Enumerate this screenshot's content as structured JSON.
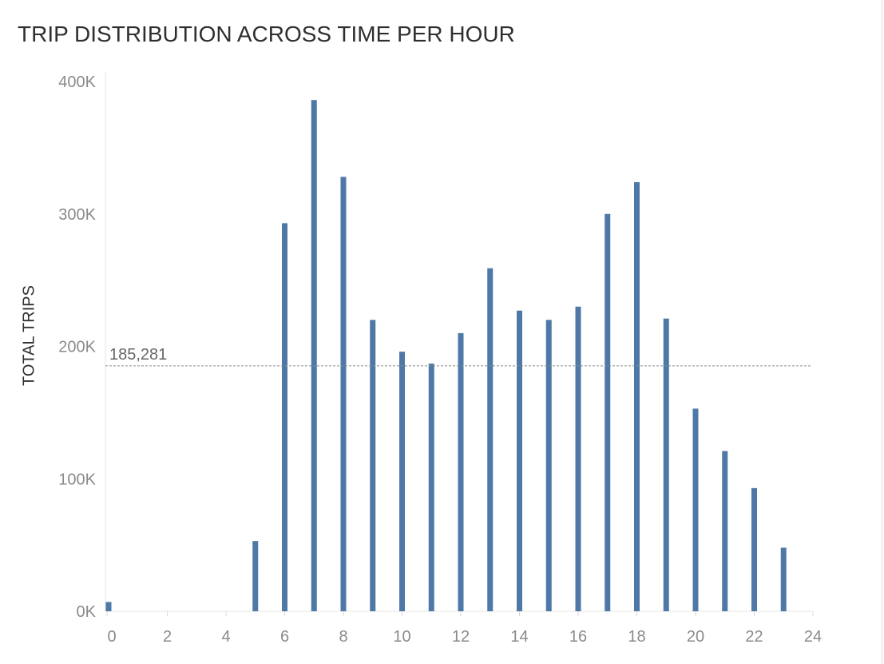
{
  "chart_data": {
    "type": "bar",
    "title": "TRIP DISTRIBUTION ACROSS TIME PER HOUR",
    "ylabel": "TOTAL TRIPS",
    "xlabel": "",
    "x": [
      0,
      1,
      2,
      3,
      4,
      5,
      6,
      7,
      8,
      9,
      10,
      11,
      12,
      13,
      14,
      15,
      16,
      17,
      18,
      19,
      20,
      21,
      22,
      23
    ],
    "values": [
      7000,
      0,
      0,
      0,
      0,
      53000,
      293000,
      386000,
      328000,
      220000,
      196000,
      187000,
      210000,
      259000,
      227000,
      220000,
      230000,
      300000,
      324000,
      221000,
      153000,
      121000,
      93000,
      48000
    ],
    "xticks": [
      "0",
      "2",
      "4",
      "6",
      "8",
      "10",
      "12",
      "14",
      "16",
      "18",
      "20",
      "22",
      "24"
    ],
    "yticks": [
      "0K",
      "100K",
      "200K",
      "300K",
      "400K"
    ],
    "xlim": [
      0,
      24
    ],
    "ylim": [
      0,
      400000
    ],
    "reference_line": {
      "value": 185281,
      "label": "185,281",
      "style": "dashed"
    },
    "grid": false,
    "bar_color": "#4e79a7"
  }
}
